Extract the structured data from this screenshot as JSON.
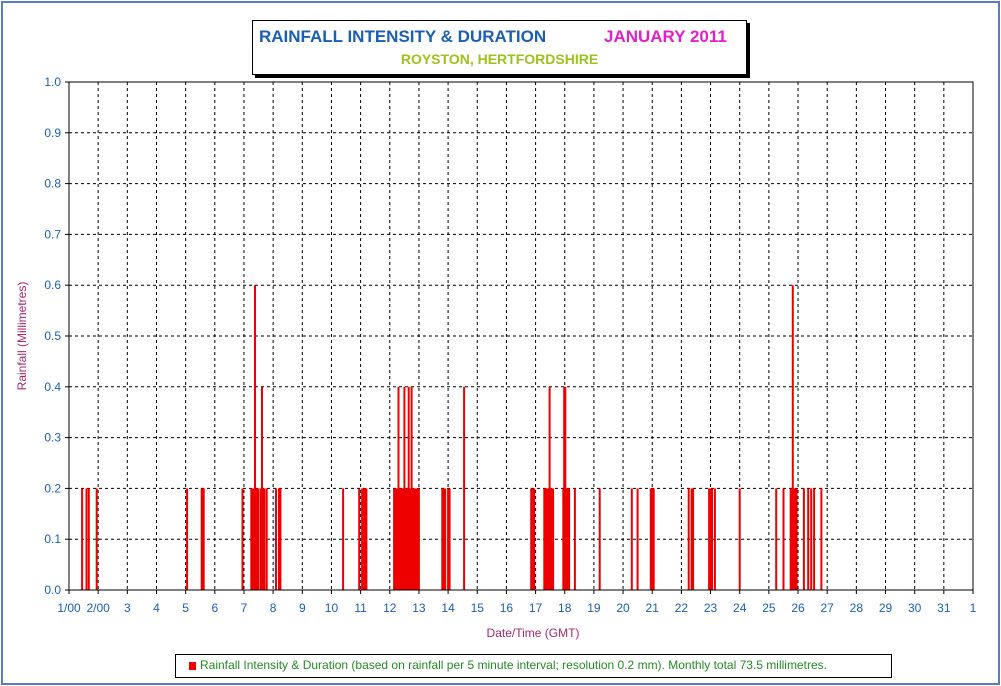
{
  "chart_data": {
    "type": "bar",
    "title": "RAINFALL INTENSITY & DURATION",
    "title_month": "JANUARY 2011",
    "subtitle": "ROYSTON, HERTFORDSHIRE",
    "xlabel": "Date/Time (GMT)",
    "ylabel": "Rainfall (Millimetres)",
    "ylim": [
      0,
      1.0
    ],
    "xlim": [
      1,
      32
    ],
    "grid": true,
    "legend_position": "bottom",
    "legend_label": "Rainfall Intensity & Duration (based on rainfall per 5 minute interval; resolution 0.2 mm). Monthly total 73.5 millimetres.",
    "y_ticks": [
      "0.0",
      "0.1",
      "0.2",
      "0.3",
      "0.4",
      "0.5",
      "0.6",
      "0.7",
      "0.8",
      "0.9",
      "1.0"
    ],
    "x_ticks": [
      "1/00",
      "2/00",
      "3",
      "4",
      "5",
      "6",
      "7",
      "8",
      "9",
      "10",
      "11",
      "12",
      "13",
      "14",
      "15",
      "16",
      "17",
      "18",
      "19",
      "20",
      "21",
      "22",
      "23",
      "24",
      "25",
      "26",
      "27",
      "28",
      "29",
      "30",
      "31",
      "1"
    ],
    "series": [
      {
        "color": "#ee0000",
        "points": [
          [
            1.45,
            0.2
          ],
          [
            1.6,
            0.2
          ],
          [
            1.68,
            0.2
          ],
          [
            1.95,
            0.2
          ],
          [
            5.05,
            0.2
          ],
          [
            5.55,
            0.2
          ],
          [
            5.6,
            0.2
          ],
          [
            5.62,
            0.2
          ],
          [
            6.95,
            0.2
          ],
          [
            7.25,
            0.2
          ],
          [
            7.3,
            0.2
          ],
          [
            7.33,
            0.2
          ],
          [
            7.38,
            0.6
          ],
          [
            7.4,
            0.2
          ],
          [
            7.45,
            0.2
          ],
          [
            7.5,
            0.2
          ],
          [
            7.58,
            0.2
          ],
          [
            7.62,
            0.4
          ],
          [
            7.66,
            0.2
          ],
          [
            7.7,
            0.2
          ],
          [
            7.78,
            0.2
          ],
          [
            8.1,
            0.2
          ],
          [
            8.2,
            0.2
          ],
          [
            8.25,
            0.2
          ],
          [
            10.4,
            0.2
          ],
          [
            10.95,
            0.2
          ],
          [
            11.05,
            0.2
          ],
          [
            11.1,
            0.2
          ],
          [
            11.15,
            0.2
          ],
          [
            11.2,
            0.2
          ],
          [
            12.15,
            0.2
          ],
          [
            12.2,
            0.2
          ],
          [
            12.25,
            0.2
          ],
          [
            12.3,
            0.4
          ],
          [
            12.35,
            0.2
          ],
          [
            12.4,
            0.2
          ],
          [
            12.45,
            0.2
          ],
          [
            12.5,
            0.4
          ],
          [
            12.55,
            0.2
          ],
          [
            12.6,
            0.2
          ],
          [
            12.65,
            0.4
          ],
          [
            12.7,
            0.2
          ],
          [
            12.75,
            0.4
          ],
          [
            12.8,
            0.2
          ],
          [
            12.85,
            0.2
          ],
          [
            12.9,
            0.2
          ],
          [
            12.95,
            0.2
          ],
          [
            13.0,
            0.2
          ],
          [
            13.8,
            0.2
          ],
          [
            13.85,
            0.2
          ],
          [
            13.9,
            0.2
          ],
          [
            14.0,
            0.2
          ],
          [
            14.05,
            0.2
          ],
          [
            14.55,
            0.4
          ],
          [
            16.85,
            0.2
          ],
          [
            16.9,
            0.2
          ],
          [
            16.95,
            0.2
          ],
          [
            17.3,
            0.2
          ],
          [
            17.35,
            0.2
          ],
          [
            17.4,
            0.2
          ],
          [
            17.45,
            0.2
          ],
          [
            17.48,
            0.4
          ],
          [
            17.5,
            0.2
          ],
          [
            17.55,
            0.2
          ],
          [
            17.6,
            0.2
          ],
          [
            17.95,
            0.2
          ],
          [
            17.98,
            0.4
          ],
          [
            18.02,
            0.4
          ],
          [
            18.05,
            0.2
          ],
          [
            18.1,
            0.2
          ],
          [
            18.15,
            0.2
          ],
          [
            18.35,
            0.2
          ],
          [
            19.2,
            0.2
          ],
          [
            20.3,
            0.2
          ],
          [
            20.5,
            0.2
          ],
          [
            20.95,
            0.2
          ],
          [
            21.0,
            0.2
          ],
          [
            21.05,
            0.2
          ],
          [
            22.25,
            0.2
          ],
          [
            22.35,
            0.2
          ],
          [
            22.4,
            0.2
          ],
          [
            22.95,
            0.2
          ],
          [
            23.0,
            0.2
          ],
          [
            23.05,
            0.2
          ],
          [
            23.15,
            0.2
          ],
          [
            24.0,
            0.2
          ],
          [
            25.25,
            0.2
          ],
          [
            25.5,
            0.2
          ],
          [
            25.75,
            0.2
          ],
          [
            25.8,
            0.2
          ],
          [
            25.82,
            0.6
          ],
          [
            25.85,
            0.2
          ],
          [
            25.9,
            0.2
          ],
          [
            25.95,
            0.2
          ],
          [
            26.2,
            0.2
          ],
          [
            26.35,
            0.2
          ],
          [
            26.45,
            0.2
          ],
          [
            26.55,
            0.2
          ],
          [
            26.8,
            0.2
          ]
        ]
      }
    ]
  }
}
